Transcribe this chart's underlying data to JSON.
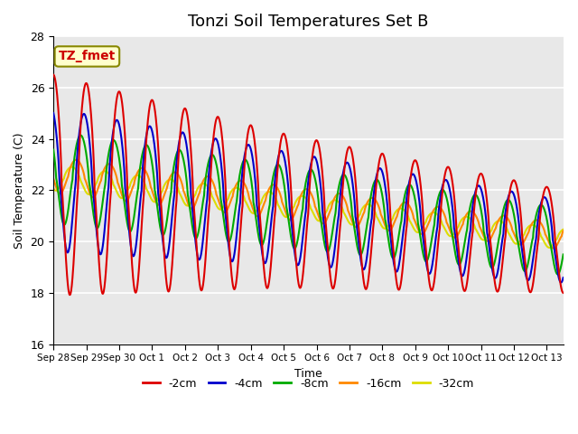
{
  "title": "Tonzi Soil Temperatures Set B",
  "xlabel": "Time",
  "ylabel": "Soil Temperature (C)",
  "ylim": [
    16,
    28
  ],
  "background_color": "#e8e8e8",
  "tick_labels": [
    "Sep 28",
    "Sep 29",
    "Sep 30",
    "Oct 1",
    "Oct 2",
    "Oct 3",
    "Oct 4",
    "Oct 5",
    "Oct 6",
    "Oct 7",
    "Oct 8",
    "Oct 9",
    "Oct 10",
    "Oct 11",
    "Oct 12",
    "Oct 13"
  ],
  "series": {
    "-2cm": {
      "color": "#dd0000",
      "lw": 1.5
    },
    "-4cm": {
      "color": "#0000cc",
      "lw": 1.5
    },
    "-8cm": {
      "color": "#00aa00",
      "lw": 1.5
    },
    "-16cm": {
      "color": "#ff8800",
      "lw": 1.5
    },
    "-32cm": {
      "color": "#dddd00",
      "lw": 1.5
    }
  },
  "annotation_text": "TZ_fmet",
  "annotation_color": "#cc0000",
  "annotation_bg": "#ffffcc",
  "annotation_border": "#888800"
}
